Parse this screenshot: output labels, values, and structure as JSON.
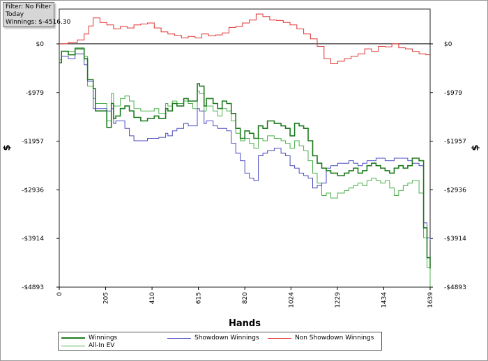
{
  "filter_panel": {
    "line1": "Filter: No Filter",
    "line2": "Today",
    "line3": "Winnings: $-4516.30"
  },
  "chart_data": {
    "type": "line",
    "title": "",
    "xlabel": "Hands",
    "ylabel": "$",
    "xlim": [
      0,
      1639
    ],
    "ylim": [
      -4893,
      700
    ],
    "x_ticks": [
      0,
      205,
      410,
      615,
      820,
      1024,
      1229,
      1434,
      1639
    ],
    "y_ticks": [
      0,
      -979,
      -1957,
      -2936,
      -3914,
      -4893
    ],
    "y_tick_labels": [
      "$0",
      "-$979",
      "-$1957",
      "-$2936",
      "-$3914",
      "-$4893"
    ],
    "zero_line": true,
    "grid": false,
    "legend_position": "bottom",
    "series": [
      {
        "name": "Winnings",
        "color": "#1e7a1e",
        "x": [
          0,
          10,
          40,
          70,
          110,
          125,
          150,
          160,
          210,
          230,
          240,
          250,
          270,
          290,
          310,
          330,
          360,
          390,
          420,
          440,
          470,
          480,
          500,
          520,
          550,
          570,
          590,
          610,
          620,
          640,
          650,
          680,
          700,
          720,
          740,
          760,
          780,
          800,
          820,
          840,
          860,
          880,
          900,
          920,
          950,
          980,
          1000,
          1020,
          1040,
          1060,
          1080,
          1100,
          1120,
          1140,
          1160,
          1180,
          1200,
          1230,
          1260,
          1280,
          1300,
          1320,
          1340,
          1360,
          1380,
          1400,
          1420,
          1440,
          1460,
          1480,
          1500,
          1520,
          1540,
          1560,
          1590,
          1610,
          1625,
          1639
        ],
        "y": [
          -380,
          -150,
          -220,
          -100,
          -300,
          -720,
          -900,
          -1350,
          -1680,
          -1200,
          -1500,
          -1450,
          -1300,
          -1250,
          -1350,
          -1480,
          -1550,
          -1500,
          -1450,
          -1500,
          -1300,
          -1350,
          -1200,
          -1250,
          -1100,
          -1150,
          -1150,
          -800,
          -850,
          -1250,
          -1100,
          -1200,
          -1300,
          -1150,
          -1200,
          -1400,
          -1700,
          -1900,
          -1750,
          -1800,
          -1900,
          -1650,
          -1700,
          -1550,
          -1600,
          -1650,
          -1700,
          -1850,
          -1600,
          -1650,
          -1700,
          -1950,
          -2250,
          -2400,
          -2500,
          -2550,
          -2600,
          -2650,
          -2600,
          -2550,
          -2500,
          -2600,
          -2550,
          -2450,
          -2400,
          -2450,
          -2500,
          -2550,
          -2600,
          -2500,
          -2450,
          -2500,
          -2450,
          -2300,
          -2350,
          -3700,
          -4300,
          -4516.3
        ]
      },
      {
        "name": "Showdown Winnings",
        "color": "#4a4ac0",
        "x": [
          0,
          10,
          40,
          70,
          110,
          125,
          150,
          160,
          210,
          230,
          240,
          250,
          270,
          290,
          310,
          330,
          360,
          390,
          420,
          440,
          470,
          480,
          500,
          520,
          550,
          570,
          590,
          610,
          620,
          640,
          650,
          680,
          700,
          720,
          740,
          760,
          780,
          800,
          820,
          840,
          860,
          880,
          900,
          920,
          950,
          980,
          1000,
          1020,
          1040,
          1060,
          1080,
          1100,
          1120,
          1140,
          1160,
          1180,
          1200,
          1230,
          1260,
          1280,
          1300,
          1320,
          1340,
          1360,
          1380,
          1400,
          1420,
          1440,
          1460,
          1480,
          1500,
          1520,
          1540,
          1560,
          1590,
          1610,
          1625,
          1639
        ],
        "y": [
          -380,
          -250,
          -300,
          -200,
          -420,
          -750,
          -1300,
          -1300,
          -1350,
          -1300,
          -1600,
          -1550,
          -1550,
          -1700,
          -1850,
          -1950,
          -1950,
          -1900,
          -1900,
          -1880,
          -1800,
          -1850,
          -1750,
          -1700,
          -1600,
          -1650,
          -1650,
          -1300,
          -1350,
          -1600,
          -1550,
          -1650,
          -1700,
          -1700,
          -1750,
          -2000,
          -2200,
          -2350,
          -2600,
          -2700,
          -2750,
          -2250,
          -2200,
          -2150,
          -2100,
          -2200,
          -2250,
          -2450,
          -2500,
          -2600,
          -2650,
          -2700,
          -2900,
          -2850,
          -2800,
          -2500,
          -2450,
          -2400,
          -2400,
          -2350,
          -2400,
          -2450,
          -2400,
          -2350,
          -2350,
          -2300,
          -2300,
          -2350,
          -2350,
          -2300,
          -2300,
          -2300,
          -2350,
          -2400,
          -2450,
          -3600,
          -3900,
          -3950
        ]
      },
      {
        "name": "Non Showdown Winnings",
        "color": "#e03030",
        "x": [
          0,
          40,
          80,
          110,
          130,
          150,
          180,
          210,
          240,
          270,
          300,
          330,
          360,
          390,
          420,
          450,
          480,
          510,
          540,
          570,
          600,
          630,
          660,
          690,
          720,
          750,
          780,
          810,
          840,
          870,
          900,
          930,
          960,
          990,
          1020,
          1050,
          1080,
          1110,
          1140,
          1170,
          1200,
          1230,
          1260,
          1290,
          1320,
          1350,
          1380,
          1410,
          1440,
          1470,
          1500,
          1530,
          1560,
          1590,
          1620,
          1639
        ],
        "y": [
          0,
          30,
          80,
          200,
          360,
          520,
          430,
          380,
          300,
          350,
          320,
          380,
          400,
          420,
          320,
          240,
          200,
          170,
          120,
          150,
          120,
          200,
          160,
          180,
          220,
          330,
          350,
          420,
          480,
          600,
          550,
          480,
          470,
          430,
          380,
          300,
          200,
          100,
          -50,
          -300,
          -400,
          -350,
          -300,
          -250,
          -200,
          -100,
          -150,
          -50,
          -60,
          0,
          -80,
          -100,
          -150,
          -200,
          -220,
          -220
        ]
      },
      {
        "name": "All-In EV",
        "color": "#4caf4c",
        "x": [
          0,
          10,
          40,
          70,
          110,
          125,
          150,
          160,
          210,
          230,
          240,
          250,
          270,
          290,
          310,
          330,
          360,
          390,
          420,
          440,
          470,
          480,
          500,
          520,
          550,
          570,
          590,
          610,
          620,
          640,
          650,
          680,
          700,
          720,
          740,
          760,
          780,
          800,
          820,
          840,
          860,
          880,
          900,
          920,
          950,
          980,
          1000,
          1020,
          1040,
          1060,
          1080,
          1100,
          1120,
          1140,
          1160,
          1180,
          1200,
          1230,
          1260,
          1280,
          1300,
          1320,
          1340,
          1360,
          1380,
          1400,
          1420,
          1440,
          1460,
          1480,
          1500,
          1520,
          1540,
          1560,
          1590,
          1610,
          1625,
          1639
        ],
        "y": [
          -320,
          -150,
          -150,
          -80,
          -250,
          -850,
          -1100,
          -1200,
          -1550,
          -1000,
          -1250,
          -1250,
          -1100,
          -1050,
          -1150,
          -1300,
          -1350,
          -1350,
          -1300,
          -1400,
          -1200,
          -1250,
          -1150,
          -1200,
          -1150,
          -1200,
          -1300,
          -950,
          -1000,
          -1350,
          -1250,
          -1350,
          -1450,
          -1300,
          -1350,
          -1550,
          -1800,
          -1950,
          -1900,
          -2000,
          -2100,
          -1900,
          -1950,
          -1850,
          -1900,
          -1950,
          -2000,
          -2100,
          -1950,
          -2050,
          -2150,
          -2350,
          -2600,
          -2800,
          -3050,
          -3000,
          -3100,
          -3000,
          -2950,
          -2900,
          -2850,
          -2800,
          -2850,
          -2750,
          -2700,
          -2750,
          -2800,
          -2750,
          -2900,
          -3050,
          -2950,
          -2850,
          -2800,
          -2750,
          -3000,
          -3900,
          -4500,
          -4893
        ]
      }
    ]
  }
}
